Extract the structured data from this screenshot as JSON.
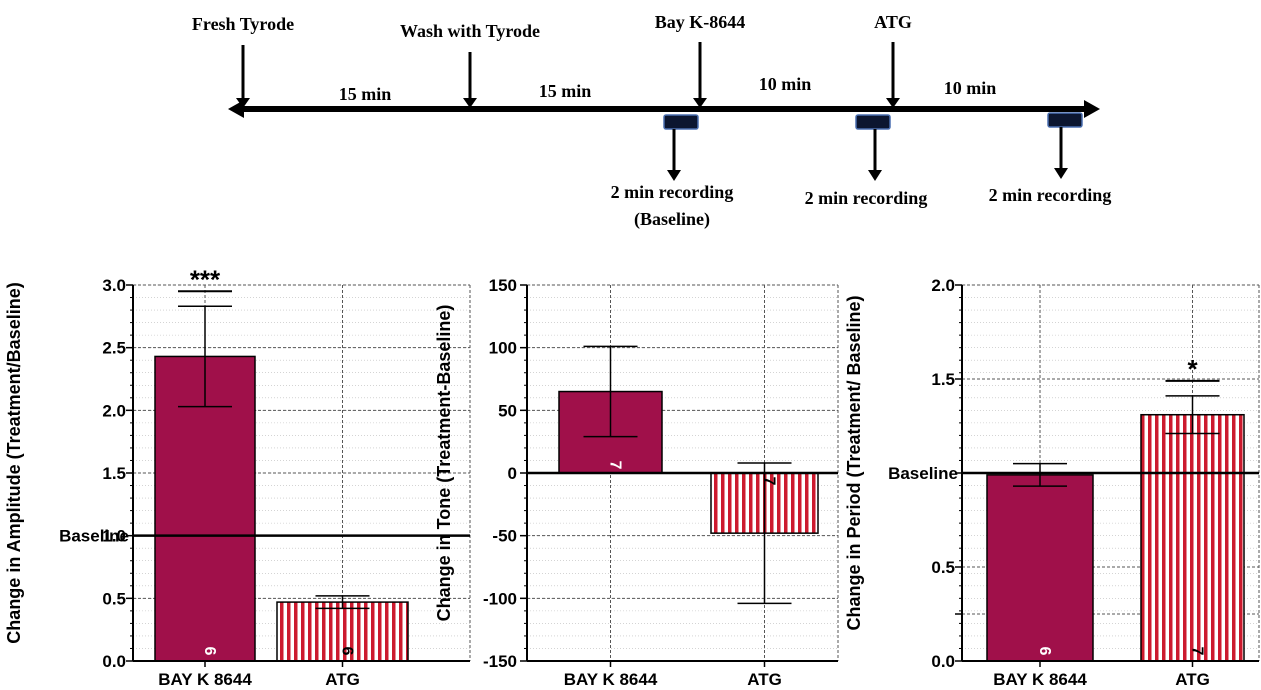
{
  "timeline": {
    "events": [
      {
        "label": "Fresh Tyrode"
      },
      {
        "label": "Wash with Tyrode"
      },
      {
        "label": "Bay K-8644"
      },
      {
        "label": "ATG"
      }
    ],
    "intervals": [
      "15 min",
      "15 min",
      "10 min",
      "10 min"
    ],
    "recordings": [
      {
        "line1": "2 min recording",
        "line2": "(Baseline)"
      },
      {
        "line1": "2 min recording",
        "line2": ""
      },
      {
        "line1": "2 min recording",
        "line2": ""
      }
    ]
  },
  "baseline_label": "Baseline",
  "colors": {
    "bay_fill": "#a0104a",
    "atg_stripe": "#cc1a2e",
    "grid": "#666666"
  },
  "chart_data": [
    {
      "type": "bar",
      "ylabel": "Change in Amplitude (Treatment/Baseline)",
      "categories": [
        "BAY K 8644",
        "ATG"
      ],
      "values": [
        2.43,
        0.47
      ],
      "errors": [
        0.4,
        0.05
      ],
      "n": [
        "6",
        "6"
      ],
      "significance": [
        "***",
        ""
      ],
      "baseline": 1.0,
      "ylim": [
        0,
        3.0
      ],
      "yticks": [
        "0.0",
        "0.5",
        "1.0",
        "1.5",
        "2.0",
        "2.5",
        "3.0"
      ],
      "grid": true
    },
    {
      "type": "bar",
      "ylabel": "Change in Tone (Treatment-Baseline)",
      "categories": [
        "BAY K 8644",
        "ATG"
      ],
      "values": [
        65,
        -48
      ],
      "errors": [
        36,
        56
      ],
      "n": [
        "7",
        "7"
      ],
      "significance": [
        "",
        ""
      ],
      "baseline": 0,
      "ylim": [
        -150,
        150
      ],
      "yticks": [
        "-150",
        "-100",
        "-50",
        "0",
        "50",
        "100",
        "150"
      ],
      "grid": true
    },
    {
      "type": "bar",
      "ylabel": "Change in Period (Treatment/ Baseline)",
      "categories": [
        "BAY K 8644",
        "ATG"
      ],
      "values": [
        0.99,
        1.31
      ],
      "errors": [
        0.06,
        0.1
      ],
      "n": [
        "6",
        "7"
      ],
      "significance": [
        "",
        "*"
      ],
      "baseline": 1.0,
      "ylim": [
        0,
        2.0
      ],
      "yticks": [
        "0.0",
        "",
        "0.5",
        "",
        "1.5",
        "2.0"
      ],
      "yticks_values": [
        0,
        0.25,
        0.5,
        1.0,
        1.5,
        2.0
      ],
      "grid": true
    }
  ]
}
